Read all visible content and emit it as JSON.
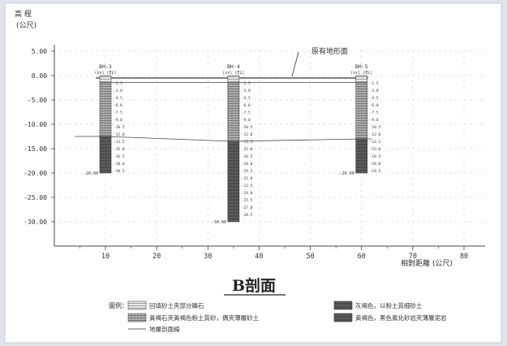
{
  "axis": {
    "y_title_line1": "高  程",
    "y_title_line2": "(公尺)",
    "x_title": "相對距離 (公尺)",
    "y_ticks": [
      "5.00",
      "0.00",
      "-5.00",
      "-10.00",
      "-15.00",
      "-20.00",
      "-25.00",
      "-30.00"
    ],
    "x_ticks": [
      "10",
      "20",
      "30",
      "40",
      "50",
      "60",
      "70",
      "80"
    ]
  },
  "surface_label": "原有地形面",
  "section_title": "B剖面",
  "boreholes": [
    {
      "id": "BH-3",
      "sub": "(xx)  (EL)",
      "top_m": 0.0,
      "bottom_m": -20.0,
      "boundary_m": -12.5,
      "x_m": 10,
      "depths": [
        "-1.5",
        "-3.0",
        "-4.5",
        "-6.0",
        "-7.5",
        "-9.0",
        "-10.5",
        "-12.0",
        "-13.5",
        "-15.0",
        "-16.5",
        "-18.0",
        "-19.5"
      ],
      "bottom_label": "-20.00"
    },
    {
      "id": "BH-4",
      "sub": "(xx)  (EL)",
      "top_m": 0.0,
      "bottom_m": -30.0,
      "boundary_m": -13.5,
      "x_m": 35,
      "depths": [
        "-1.5",
        "-3.0",
        "-4.5",
        "-6.0",
        "-7.5",
        "-9.0",
        "-10.5",
        "-12.0",
        "-13.5",
        "-15.0",
        "-16.5",
        "-18.0",
        "-19.5",
        "-21.0",
        "-22.5",
        "-24.0",
        "-25.5",
        "-27.0",
        "-28.5"
      ],
      "bottom_label": "-30.00"
    },
    {
      "id": "BH-5",
      "sub": "(xx)  (EL)",
      "top_m": 0.0,
      "bottom_m": -20.0,
      "boundary_m": -13.0,
      "x_m": 60,
      "depths": [
        "-1.5",
        "-3.0",
        "-4.5",
        "-6.0",
        "-7.5",
        "-9.0",
        "-10.5",
        "-12.0",
        "-13.5",
        "-15.0",
        "-16.5",
        "-18.0",
        "-19.5"
      ],
      "bottom_label": "-20.00"
    }
  ],
  "legend": {
    "heading": "圖例：",
    "items": [
      "回填砂土夾部分礫石",
      "灰褐色，以粉土質細砂土",
      "黃褐石夾黃褐色粉土質砂，偶夾薄層砂土",
      "黃褐色，黑色風化砂岩夾薄層泥岩",
      "地層剖面線"
    ]
  },
  "colors": {
    "light_hatch": "#bdbdbd",
    "mid_hatch": "#9a9a9a",
    "dark_fill": "#5c5c5c",
    "grid": "#9aa3ad"
  }
}
